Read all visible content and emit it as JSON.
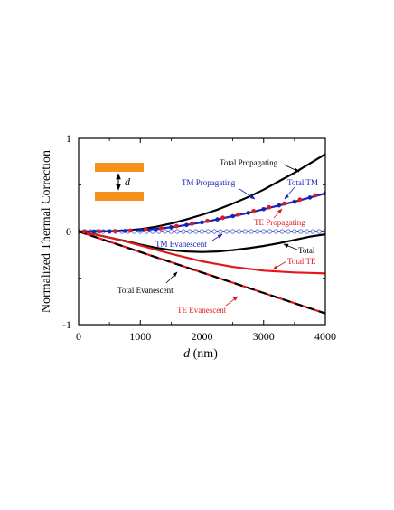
{
  "chart_data": {
    "type": "line",
    "xlabel_var": "d",
    "xlabel_unit": "(nm)",
    "ylabel": "Normalized Thermal Correction",
    "xlim": [
      0,
      4000
    ],
    "ylim": [
      -1,
      1
    ],
    "xticks": [
      0,
      1000,
      2000,
      3000,
      4000
    ],
    "xtick_labels": [
      "0",
      "1000",
      "2000",
      "3000",
      "4000"
    ],
    "yticks": [
      -1,
      0,
      1
    ],
    "ytick_labels": [
      "-1",
      "0",
      "1"
    ],
    "grid": false,
    "legend": "none",
    "inset_label": "d",
    "colors": {
      "black": "#000000",
      "blue": "#1a22b5",
      "red": "#e0191d",
      "plate": "#f5921e",
      "circle": "#5a6fd0"
    },
    "series": [
      {
        "name": "Total Propagating",
        "color": "#000000",
        "style": "solid",
        "x": [
          0,
          250,
          500,
          750,
          1000,
          1250,
          1500,
          1750,
          2000,
          2250,
          2500,
          2750,
          3000,
          3250,
          3500,
          3750,
          4000
        ],
        "y": [
          0,
          0.001,
          0.004,
          0.01,
          0.025,
          0.05,
          0.085,
          0.13,
          0.18,
          0.235,
          0.3,
          0.37,
          0.45,
          0.54,
          0.63,
          0.73,
          0.83
        ]
      },
      {
        "name": "Total TM",
        "color": "#1a22b5",
        "style": "solid-markers",
        "x": [
          0,
          250,
          500,
          750,
          1000,
          1250,
          1500,
          1750,
          2000,
          2250,
          2500,
          2750,
          3000,
          3250,
          3500,
          3750,
          4000
        ],
        "y": [
          0,
          0.0,
          0.002,
          0.006,
          0.014,
          0.028,
          0.046,
          0.07,
          0.098,
          0.13,
          0.165,
          0.2,
          0.24,
          0.28,
          0.32,
          0.365,
          0.41
        ]
      },
      {
        "name": "TM Evanescent",
        "color": "#1a22b5",
        "style": "open-circles",
        "x": [
          0,
          250,
          500,
          750,
          1000,
          1250,
          1500,
          1750,
          2000,
          2250,
          2500,
          2750,
          3000,
          3250,
          3500,
          3750,
          4000
        ],
        "y": [
          0,
          0,
          0,
          0,
          0,
          0,
          0,
          0,
          0,
          0,
          0,
          0,
          0,
          0,
          0,
          0,
          0
        ]
      },
      {
        "name": "Total",
        "color": "#000000",
        "style": "solid",
        "x": [
          0,
          250,
          500,
          750,
          1000,
          1250,
          1500,
          1750,
          2000,
          2250,
          2500,
          2750,
          3000,
          3250,
          3500,
          3750,
          4000
        ],
        "y": [
          0,
          -0.03,
          -0.065,
          -0.1,
          -0.14,
          -0.175,
          -0.2,
          -0.215,
          -0.22,
          -0.215,
          -0.2,
          -0.18,
          -0.155,
          -0.125,
          -0.09,
          -0.055,
          -0.03
        ]
      },
      {
        "name": "Total TE",
        "color": "#e0191d",
        "style": "solid",
        "x": [
          0,
          250,
          500,
          750,
          1000,
          1250,
          1500,
          1750,
          2000,
          2250,
          2500,
          2750,
          3000,
          3250,
          3500,
          3750,
          4000
        ],
        "y": [
          0,
          -0.03,
          -0.065,
          -0.105,
          -0.15,
          -0.195,
          -0.24,
          -0.28,
          -0.32,
          -0.35,
          -0.38,
          -0.4,
          -0.42,
          -0.43,
          -0.44,
          -0.445,
          -0.45
        ]
      },
      {
        "name": "Total Evanescent",
        "color": "#000000",
        "style": "dashed",
        "x": [
          0,
          500,
          1000,
          1500,
          2000,
          2500,
          3000,
          3500,
          4000
        ],
        "y": [
          0,
          -0.11,
          -0.22,
          -0.33,
          -0.44,
          -0.55,
          -0.66,
          -0.77,
          -0.88
        ]
      },
      {
        "name": "TE Evanescent",
        "color": "#e0191d",
        "style": "solid",
        "x": [
          0,
          500,
          1000,
          1500,
          2000,
          2500,
          3000,
          3500,
          4000
        ],
        "y": [
          0,
          -0.11,
          -0.22,
          -0.33,
          -0.44,
          -0.55,
          -0.66,
          -0.77,
          -0.88
        ]
      },
      {
        "name": "TE Propagating",
        "color": "#e0191d",
        "style": "dots",
        "x": [
          0,
          250,
          500,
          750,
          1000,
          1250,
          1500,
          1750,
          2000,
          2250,
          2500,
          2750,
          3000,
          3250,
          3500,
          3750,
          4000
        ],
        "y": [
          0,
          0.0,
          0.002,
          0.006,
          0.014,
          0.028,
          0.046,
          0.07,
          0.098,
          0.13,
          0.165,
          0.2,
          0.24,
          0.28,
          0.32,
          0.365,
          0.41
        ]
      }
    ],
    "annotations": [
      {
        "text": "Total Propagating",
        "color": "#000000"
      },
      {
        "text": "Total TM",
        "color": "#1a22b5"
      },
      {
        "text": "TM Propagating",
        "color": "#1a22b5"
      },
      {
        "text": "TE Propagating",
        "color": "#e0191d"
      },
      {
        "text": "TM Evanescent",
        "color": "#1a22b5"
      },
      {
        "text": "Total",
        "color": "#000000"
      },
      {
        "text": "Total TE",
        "color": "#e0191d"
      },
      {
        "text": "Total Evanescent",
        "color": "#000000"
      },
      {
        "text": "TE Evanescent",
        "color": "#e0191d"
      }
    ]
  }
}
